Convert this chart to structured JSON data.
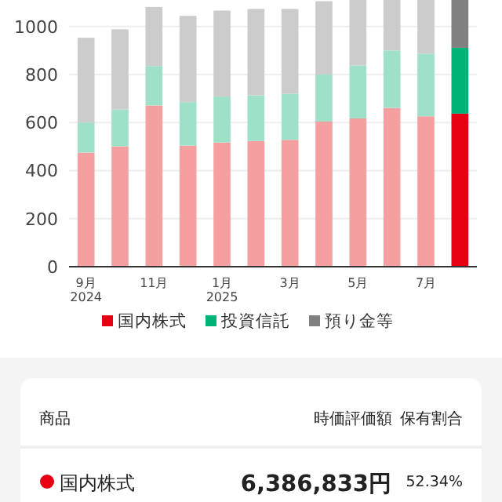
{
  "chart_data": [
    {
      "type": "bar",
      "stacked": true,
      "categories": [
        "9月\n2024",
        null,
        "11月",
        null,
        "1月\n2025",
        null,
        "3月",
        null,
        "5月",
        null,
        "7月",
        null
      ],
      "series": [
        {
          "name": "国内株式",
          "color": "#e60012",
          "colors": [
            "#f4a0a0",
            "#f4a0a0",
            "#f4a0a0",
            "#f4a0a0",
            "#f4a0a0",
            "#f4a0a0",
            "#f4a0a0",
            "#f4a0a0",
            "#f4a0a0",
            "#f4a0a0",
            "#f4a0a0",
            "#e60012"
          ],
          "values": [
            475,
            501,
            671,
            504,
            517,
            523,
            528,
            604,
            617,
            661,
            626,
            637
          ]
        },
        {
          "name": "投資信託",
          "color": "#00b377",
          "colors": [
            "#9ee0c8",
            "#9ee0c8",
            "#9ee0c8",
            "#9ee0c8",
            "#9ee0c8",
            "#9ee0c8",
            "#9ee0c8",
            "#9ee0c8",
            "#9ee0c8",
            "#9ee0c8",
            "#9ee0c8",
            "#00b377"
          ],
          "values": [
            125,
            153,
            164,
            181,
            191,
            190,
            192,
            196,
            220,
            239,
            261,
            274
          ]
        },
        {
          "name": "預り金等",
          "color": "#808080",
          "colors": [
            "#cccccc",
            "#cccccc",
            "#cccccc",
            "#cccccc",
            "#cccccc",
            "#cccccc",
            "#cccccc",
            "#cccccc",
            "#cccccc",
            "#cccccc",
            "#cccccc",
            "#808080"
          ],
          "values": [
            353,
            334,
            246,
            359,
            358,
            360,
            353,
            305,
            273,
            210,
            223,
            199
          ]
        }
      ],
      "ylim": [
        0,
        1110
      ],
      "yticks": [
        0,
        200,
        400,
        600,
        800,
        1000
      ],
      "grid": "y",
      "legend": "bottom"
    },
    {
      "type": "other",
      "annotations": [
        "商品",
        "時価評価額",
        "保有割合",
        "国内株式",
        "6,386,833円",
        "52.34%"
      ]
    }
  ]
}
